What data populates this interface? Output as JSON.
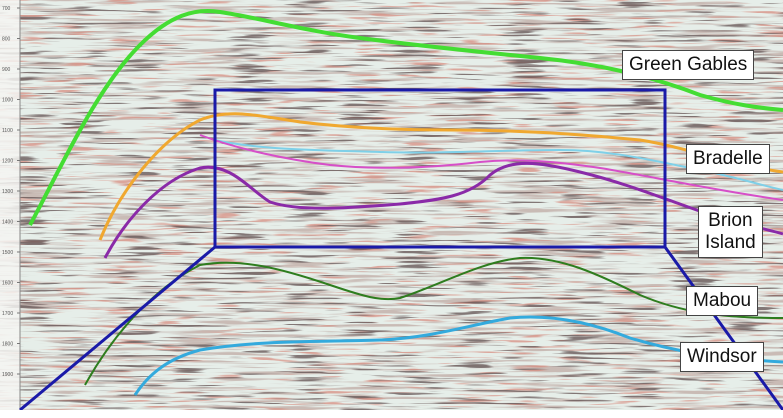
{
  "depth_ticks": [
    "700",
    "800",
    "900",
    "1000",
    "1100",
    "1200",
    "1300",
    "1400",
    "1500",
    "1600",
    "1700",
    "1800",
    "1900"
  ],
  "horizons": [
    {
      "id": "green-gables",
      "label_lines": [
        "Green Gables"
      ],
      "color": "#44dd33"
    },
    {
      "id": "bradelle",
      "label_lines": [
        "Bradelle"
      ],
      "color": "#f0a830"
    },
    {
      "id": "brion-island",
      "label_lines": [
        "Brion",
        "Island"
      ],
      "color": "#8a2aa8"
    },
    {
      "id": "mabou",
      "label_lines": [
        "Mabou"
      ],
      "color": "#2e7d1e"
    },
    {
      "id": "windsor",
      "label_lines": [
        "Windsor"
      ],
      "color": "#33aadd"
    }
  ],
  "zoom_box_color": "#1a1aa8"
}
